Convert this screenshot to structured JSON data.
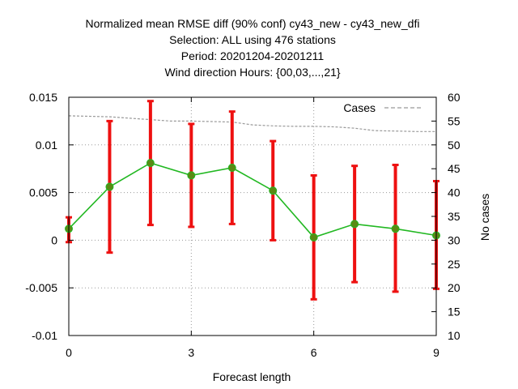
{
  "chart_data": {
    "type": "line",
    "title_lines": [
      "Normalized mean RMSE diff (90% conf) cy43_new - cy43_new_dfi",
      "Selection: ALL using   476 stations",
      "Period: 20201204-20201211",
      "Wind direction   Hours: {00,03,...,21}"
    ],
    "xlabel": "Forecast length",
    "ylabel": "",
    "y2label": "No cases",
    "xlim": [
      0,
      9
    ],
    "ylim": [
      -0.01,
      0.015
    ],
    "y2lim": [
      10,
      60
    ],
    "xticks": [
      0,
      3,
      6,
      9
    ],
    "xtick_labels": [
      "0",
      "3",
      "6",
      "9"
    ],
    "yticks": [
      -0.01,
      -0.005,
      0,
      0.005,
      0.01,
      0.015
    ],
    "ytick_labels": [
      "-0.01",
      "-0.005",
      "0",
      "0.005",
      "0.01",
      "0.015"
    ],
    "y2ticks": [
      10,
      15,
      20,
      25,
      30,
      35,
      40,
      45,
      50,
      55,
      60
    ],
    "y2tick_labels": [
      "10",
      "15",
      "20",
      "25",
      "30",
      "35",
      "40",
      "45",
      "50",
      "55",
      "60"
    ],
    "grid": true,
    "legend_position": "top-right",
    "colors": {
      "line": "#22b822",
      "marker": "#5a8a14",
      "errorbar": "#ee1111",
      "cases": "#999999"
    },
    "series": [
      {
        "x": [
          0,
          1,
          2,
          3,
          4,
          5,
          6,
          7,
          8,
          9
        ],
        "values": [
          0.0012,
          0.0056,
          0.0081,
          0.0068,
          0.0076,
          0.0052,
          0.0003,
          0.0017,
          0.0012,
          0.0005
        ],
        "error_low": [
          -0.0002,
          -0.0013,
          0.0016,
          0.0014,
          0.0017,
          0.0,
          -0.0062,
          -0.0044,
          -0.0054,
          -0.0051
        ],
        "error_high": [
          0.0024,
          0.0125,
          0.0146,
          0.0122,
          0.0135,
          0.0104,
          0.0068,
          0.0078,
          0.0079,
          0.0062
        ]
      },
      {
        "name": "Cases",
        "axis": "y2",
        "style": "dashed",
        "x": [
          0,
          0.5,
          1,
          1.5,
          2,
          2.5,
          3,
          3.5,
          4,
          4.5,
          5,
          5.5,
          6,
          6.5,
          7,
          7.5,
          8,
          8.5,
          9
        ],
        "values": [
          56.1,
          56.0,
          55.9,
          55.6,
          55.3,
          55.0,
          55.0,
          54.9,
          54.8,
          54.2,
          54.0,
          53.9,
          53.9,
          53.8,
          53.5,
          53.0,
          52.9,
          52.8,
          52.8
        ]
      }
    ]
  }
}
